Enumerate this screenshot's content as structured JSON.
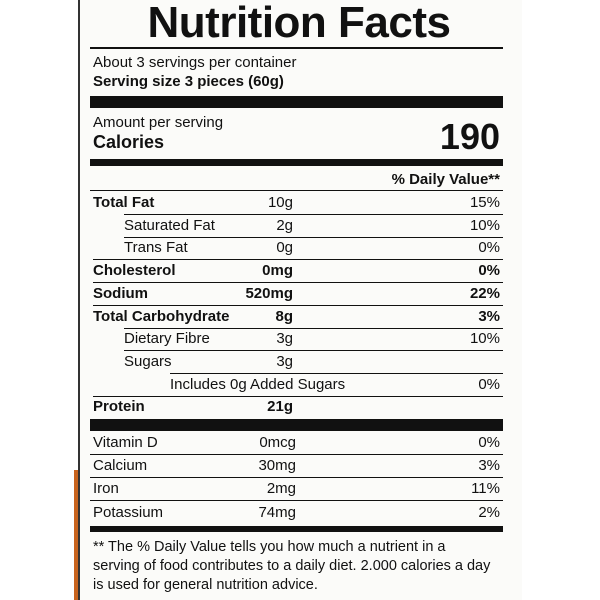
{
  "title": "Nutrition Facts",
  "servings": "About 3 servings per container",
  "serving_size": "Serving size 3 pieces (60g)",
  "amount_per_serving": "Amount per serving",
  "calories_label": "Calories",
  "calories": "190",
  "daily_value_header": "% Daily Value**",
  "nutrients": [
    {
      "name": "Total Fat",
      "amount": "10g",
      "daily_value": "15%"
    },
    {
      "name": "Saturated Fat",
      "amount": "2g",
      "daily_value": "10%"
    },
    {
      "name": "Trans Fat",
      "amount": "0g",
      "daily_value": "0%"
    },
    {
      "name": "Cholesterol",
      "amount": "0mg",
      "daily_value": "0%"
    },
    {
      "name": "Sodium",
      "amount": "520mg",
      "daily_value": "22%"
    },
    {
      "name": "Total Carbohydrate",
      "amount": "8g",
      "daily_value": "3%"
    },
    {
      "name": "Dietary Fibre",
      "amount": "3g",
      "daily_value": "10%"
    },
    {
      "name": "Sugars",
      "amount": "3g"
    },
    {
      "name": "Includes 0g Added Sugars",
      "daily_value": "0%"
    },
    {
      "name": "Protein",
      "amount": "21g"
    }
  ],
  "vitamins": [
    {
      "name": "Vitamin D",
      "amount": "0mcg",
      "daily_value": "0%"
    },
    {
      "name": "Calcium",
      "amount": "30mg",
      "daily_value": "3%"
    },
    {
      "name": "Iron",
      "amount": "2mg",
      "daily_value": "11%"
    },
    {
      "name": "Potassium",
      "amount": "74mg",
      "daily_value": "2%"
    }
  ],
  "footnote": "** The % Daily Value tells you how much a nutrient in a serving of food contributes to a daily diet. 2.000 calories a day is used for general nutrition advice."
}
